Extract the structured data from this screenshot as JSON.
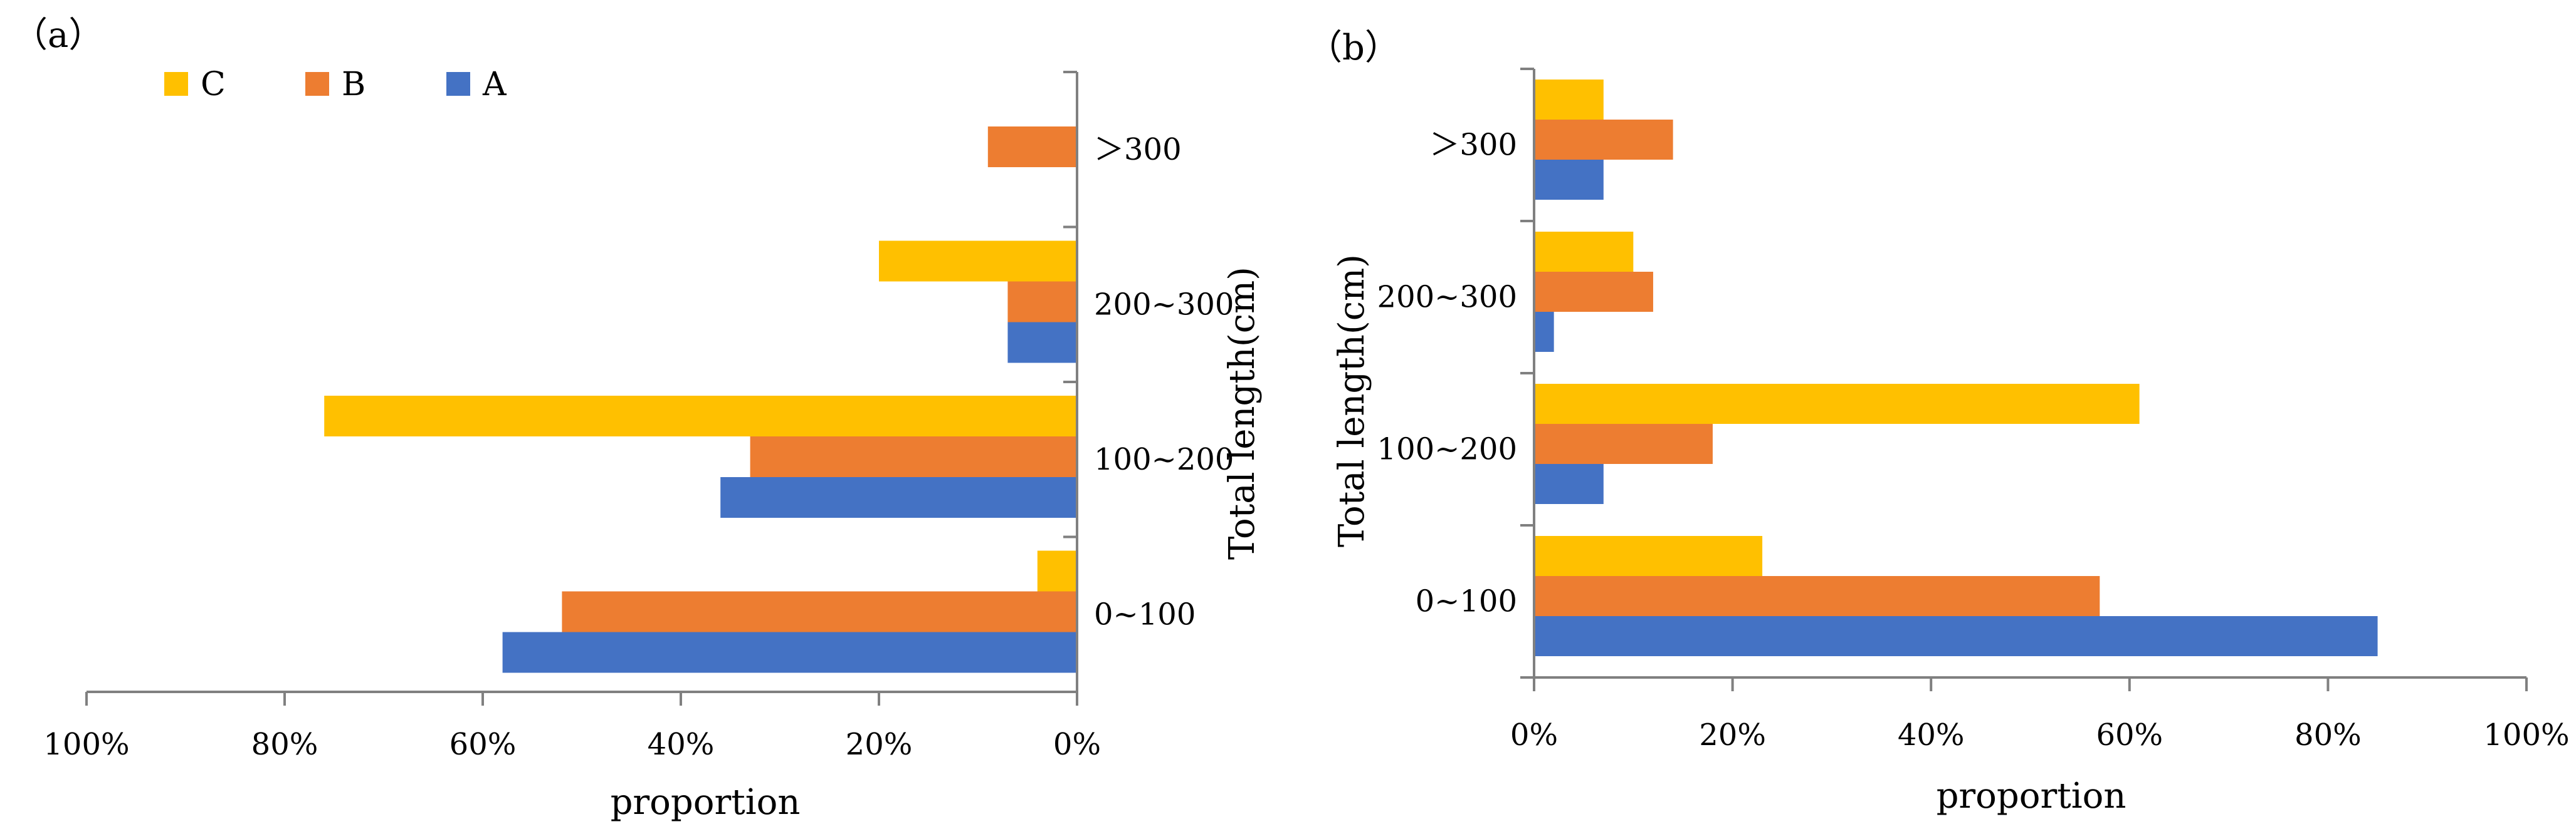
{
  "chart_data": [
    {
      "panel_label": "（a）",
      "type": "bar",
      "orientation": "horizontal",
      "direction": "right-to-left",
      "categories": [
        "0~100",
        "100~200",
        "200~300",
        ">300"
      ],
      "category_labels": [
        "0~100",
        "100~200",
        "200~300",
        "＞300"
      ],
      "series": [
        {
          "name": "A",
          "color": "#4472C4",
          "values": [
            58,
            36,
            7,
            0
          ]
        },
        {
          "name": "B",
          "color": "#ED7D31",
          "values": [
            52,
            33,
            7,
            9
          ]
        },
        {
          "name": "C",
          "color": "#FFC000",
          "values": [
            4,
            76,
            20,
            0
          ]
        }
      ],
      "xlabel": "proportion",
      "ylabel": "Total length(cm)",
      "xlim": [
        0,
        100
      ],
      "xticks": [
        "100%",
        "80%",
        "60%",
        "40%",
        "20%",
        "0%"
      ],
      "legend": {
        "position": "top-left",
        "entries": [
          "C",
          "B",
          "A"
        ]
      },
      "grid": false
    },
    {
      "panel_label": "（b）",
      "type": "bar",
      "orientation": "horizontal",
      "direction": "left-to-right",
      "categories": [
        "0~100",
        "100~200",
        "200~300",
        ">300"
      ],
      "category_labels": [
        "0~100",
        "100~200",
        "200~300",
        "＞300"
      ],
      "series": [
        {
          "name": "A",
          "color": "#4472C4",
          "values": [
            85,
            7,
            2,
            7
          ]
        },
        {
          "name": "B",
          "color": "#ED7D31",
          "values": [
            57,
            18,
            12,
            14
          ]
        },
        {
          "name": "C",
          "color": "#FFC000",
          "values": [
            23,
            61,
            10,
            7
          ]
        }
      ],
      "xlabel": "proportion",
      "ylabel": "Total length(cm)",
      "xlim": [
        0,
        100
      ],
      "xticks": [
        "0%",
        "20%",
        "40%",
        "60%",
        "80%",
        "100%"
      ],
      "grid": false
    }
  ]
}
